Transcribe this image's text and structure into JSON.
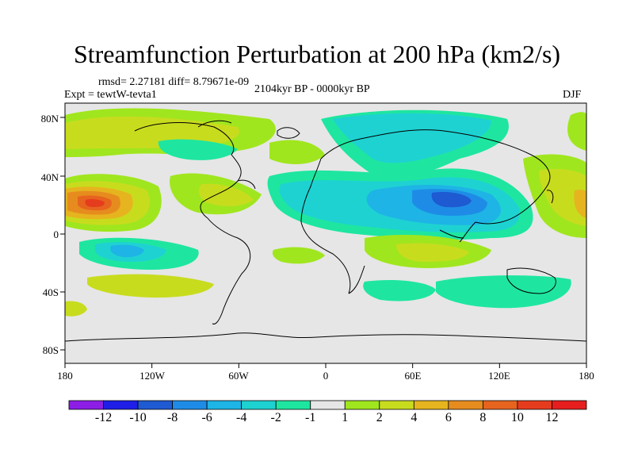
{
  "title": "Streamfunction Perturbation at 200 hPa (km2/s)",
  "stats": "rmsd= 2.27181 diff= 8.79671e-09",
  "experiment": "Expt = tewtW-tevta1",
  "period": "2104kyr BP - 0000kyr BP",
  "season": "DJF",
  "lat_ticks": [
    "80N",
    "40N",
    "0",
    "40S",
    "80S"
  ],
  "lon_ticks": [
    "180",
    "120W",
    "60W",
    "0",
    "60E",
    "120E",
    "180"
  ],
  "colorbar": {
    "labels": [
      "-12",
      "-10",
      "-8",
      "-6",
      "-4",
      "-2",
      "-1",
      "1",
      "2",
      "4",
      "6",
      "8",
      "10",
      "12"
    ],
    "colors": [
      "#8c1ee6",
      "#1e1ee6",
      "#1e5ad2",
      "#1e8ce6",
      "#1eb4e6",
      "#1ed2d2",
      "#1ee6a0",
      "#e6e6e6",
      "#a0e61e",
      "#c8dc1e",
      "#e6b41e",
      "#e68c1e",
      "#e6641e",
      "#e63c1e",
      "#e61e1e"
    ]
  },
  "map_background": "#e6e6e6"
}
